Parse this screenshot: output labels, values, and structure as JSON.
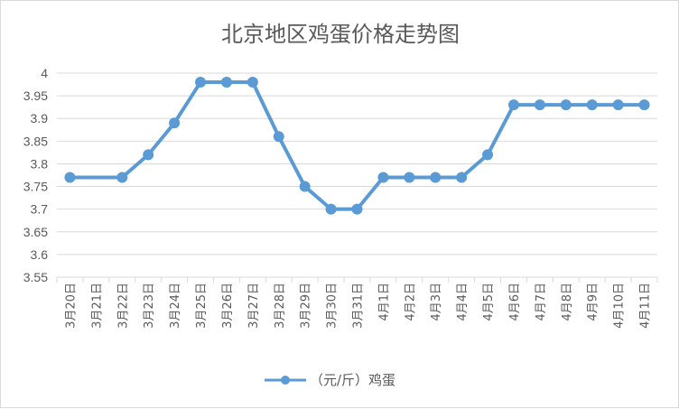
{
  "chart_data": {
    "type": "line",
    "title": "北京地区鸡蛋价格走势图",
    "xlabel": "",
    "ylabel": "",
    "categories": [
      "3月20日",
      "3月21日",
      "3月22日",
      "3月23日",
      "3月24日",
      "3月25日",
      "3月26日",
      "3月27日",
      "3月28日",
      "3月29日",
      "3月30日",
      "3月31日",
      "4月1日",
      "4月2日",
      "4月3日",
      "4月4日",
      "4月5日",
      "4月6日",
      "4月7日",
      "4月8日",
      "4月9日",
      "4月10日",
      "4月11日"
    ],
    "series": [
      {
        "name": "（元/斤）鸡蛋",
        "values": [
          3.77,
          null,
          3.77,
          3.82,
          3.89,
          3.98,
          3.98,
          3.98,
          3.86,
          3.75,
          3.7,
          3.7,
          3.77,
          3.77,
          3.77,
          3.77,
          3.82,
          3.93,
          3.93,
          3.93,
          3.93,
          3.93,
          3.93
        ],
        "color": "#5b9bd5"
      }
    ],
    "ylim": [
      3.55,
      4
    ],
    "yticks": [
      "3.55",
      "3.6",
      "3.65",
      "3.7",
      "3.75",
      "3.8",
      "3.85",
      "3.9",
      "3.95",
      "4"
    ],
    "grid": true,
    "legend": "bottom"
  }
}
